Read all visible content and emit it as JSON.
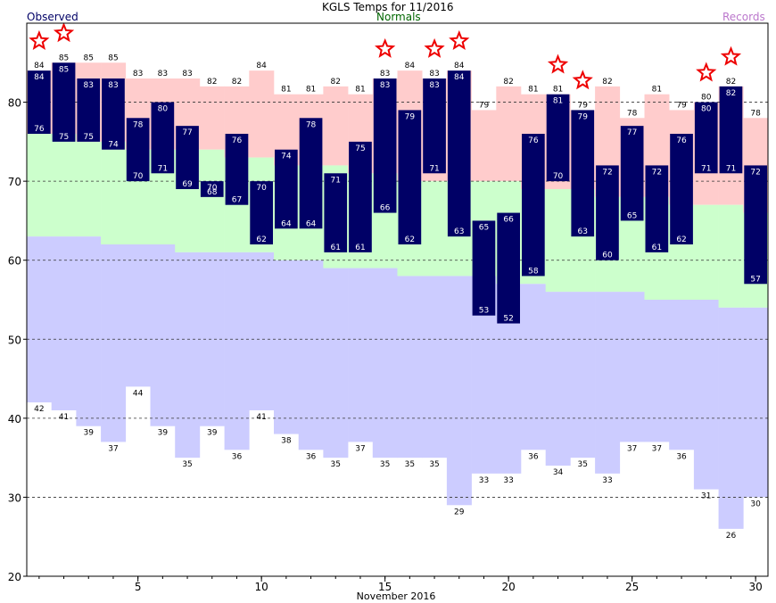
{
  "header": {
    "title": "KGLS Temps for 11/2016",
    "observed_label": "Observed",
    "normals_label": "Normals",
    "records_label": "Records"
  },
  "colors": {
    "record_high_band": "#ffcccc",
    "normal_band": "#ccffcc",
    "record_low_band": "#ccccff",
    "observed_bar": "#000066",
    "star": "#ee0000",
    "observed_text": "#000066",
    "normals_text": "#006600",
    "records_text": "#bb77cc"
  },
  "chart_data": {
    "type": "bar",
    "title": "KGLS Temps for 11/2016",
    "xlabel": "November 2016",
    "ylabel": "",
    "xlim": [
      1,
      30
    ],
    "ylim": [
      20,
      90
    ],
    "y_ticks": [
      20,
      30,
      40,
      50,
      60,
      70,
      80
    ],
    "x_ticks": [
      5,
      10,
      15,
      20,
      25,
      30
    ],
    "grid": "dashed horizontal at 30, 40, 50, 60, 70, 80",
    "legend": "top: Observed (left), Normals (center), Records (right)",
    "days": [
      1,
      2,
      3,
      4,
      5,
      6,
      7,
      8,
      9,
      10,
      11,
      12,
      13,
      14,
      15,
      16,
      17,
      18,
      19,
      20,
      21,
      22,
      23,
      24,
      25,
      26,
      27,
      28,
      29,
      30
    ],
    "series": [
      {
        "name": "Observed",
        "key": "obs_high",
        "values": [
          84,
          85,
          83,
          83,
          78,
          80,
          77,
          70,
          76,
          70,
          74,
          78,
          71,
          75,
          83,
          79,
          83,
          84,
          65,
          66,
          76,
          81,
          79,
          72,
          77,
          72,
          76,
          80,
          82,
          72
        ]
      },
      {
        "name": "Observed",
        "key": "obs_low",
        "values": [
          76,
          75,
          75,
          74,
          70,
          71,
          69,
          68,
          67,
          62,
          64,
          64,
          61,
          61,
          66,
          62,
          71,
          63,
          53,
          52,
          58,
          70,
          63,
          60,
          65,
          61,
          62,
          71,
          71,
          57
        ]
      },
      {
        "name": "Normals",
        "key": "normal_high",
        "values": [
          76,
          76,
          75,
          75,
          74,
          74,
          74,
          74,
          73,
          73,
          72,
          72,
          72,
          71,
          71,
          70,
          70,
          70,
          70,
          70,
          69,
          69,
          69,
          68,
          68,
          68,
          67,
          67,
          67,
          66
        ]
      },
      {
        "name": "Normals",
        "key": "normal_low",
        "values": [
          63,
          63,
          63,
          62,
          62,
          62,
          61,
          61,
          61,
          61,
          60,
          60,
          59,
          59,
          59,
          58,
          58,
          58,
          58,
          57,
          57,
          56,
          56,
          56,
          56,
          55,
          55,
          55,
          54,
          54
        ]
      },
      {
        "name": "Records",
        "key": "record_high",
        "values": [
          84,
          85,
          85,
          85,
          83,
          83,
          83,
          82,
          82,
          84,
          81,
          81,
          82,
          81,
          83,
          84,
          83,
          84,
          79,
          82,
          81,
          81,
          79,
          82,
          78,
          81,
          79,
          80,
          82,
          78
        ]
      },
      {
        "name": "Records",
        "key": "record_low",
        "values": [
          42,
          41,
          39,
          37,
          44,
          39,
          35,
          39,
          36,
          41,
          38,
          36,
          35,
          37,
          35,
          35,
          35,
          29,
          33,
          33,
          36,
          34,
          35,
          33,
          37,
          37,
          36,
          31,
          26,
          30
        ]
      }
    ],
    "record_set_days": [
      1,
      2,
      15,
      17,
      18,
      22,
      23,
      28,
      29
    ]
  }
}
